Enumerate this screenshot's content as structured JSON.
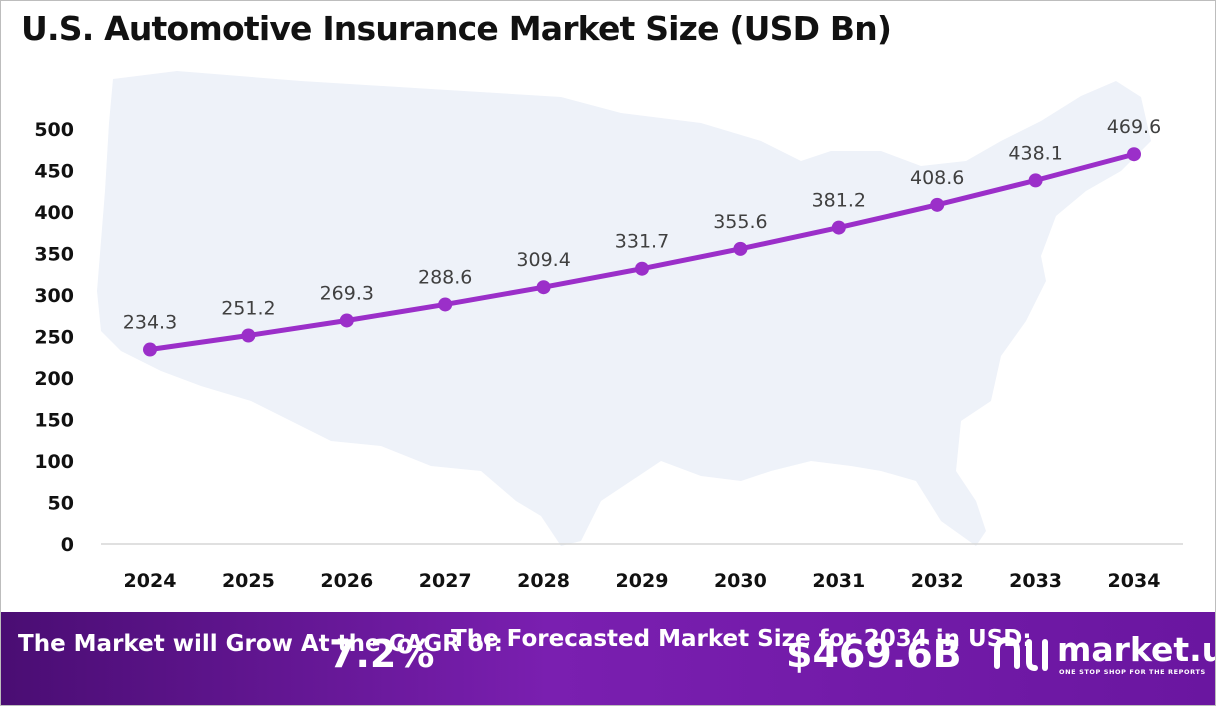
{
  "chart_data": {
    "type": "line",
    "title": "U.S. Automotive Insurance Market Size (USD Bn)",
    "categories": [
      "2024",
      "2025",
      "2026",
      "2027",
      "2028",
      "2029",
      "2030",
      "2031",
      "2032",
      "2033",
      "2034"
    ],
    "values": [
      234.3,
      251.2,
      269.3,
      288.6,
      309.4,
      331.7,
      355.6,
      381.2,
      408.6,
      438.1,
      469.6
    ],
    "value_labels": [
      "234.3",
      "251.2",
      "269.3",
      "288.6",
      "309.4",
      "331.7",
      "355.6",
      "381.2",
      "408.6",
      "438.1",
      "469.6"
    ],
    "y_ticks": [
      0,
      50,
      100,
      150,
      200,
      250,
      300,
      350,
      400,
      450,
      500
    ],
    "ylim": [
      0,
      500
    ],
    "xlabel": "",
    "ylabel": "",
    "grid": false,
    "line_color": "#9b2fc9",
    "background_graphic": "usa-map-silhouette"
  },
  "footer": {
    "cagr_label": "The Market will Grow At the CAGR of:",
    "cagr_value": "7.2%",
    "forecast_label": "The Forecasted Market Size for 2034 in USD:",
    "forecast_value": "$469.6B"
  },
  "brand": {
    "name": "market.us",
    "tagline": "ONE STOP SHOP FOR THE REPORTS",
    "icon": "market-us-logo-icon"
  },
  "colors": {
    "line": "#9b2fc9",
    "footer_start": "#4a0d73",
    "footer_end": "#7a1fb0",
    "map": "#eef2f9"
  }
}
